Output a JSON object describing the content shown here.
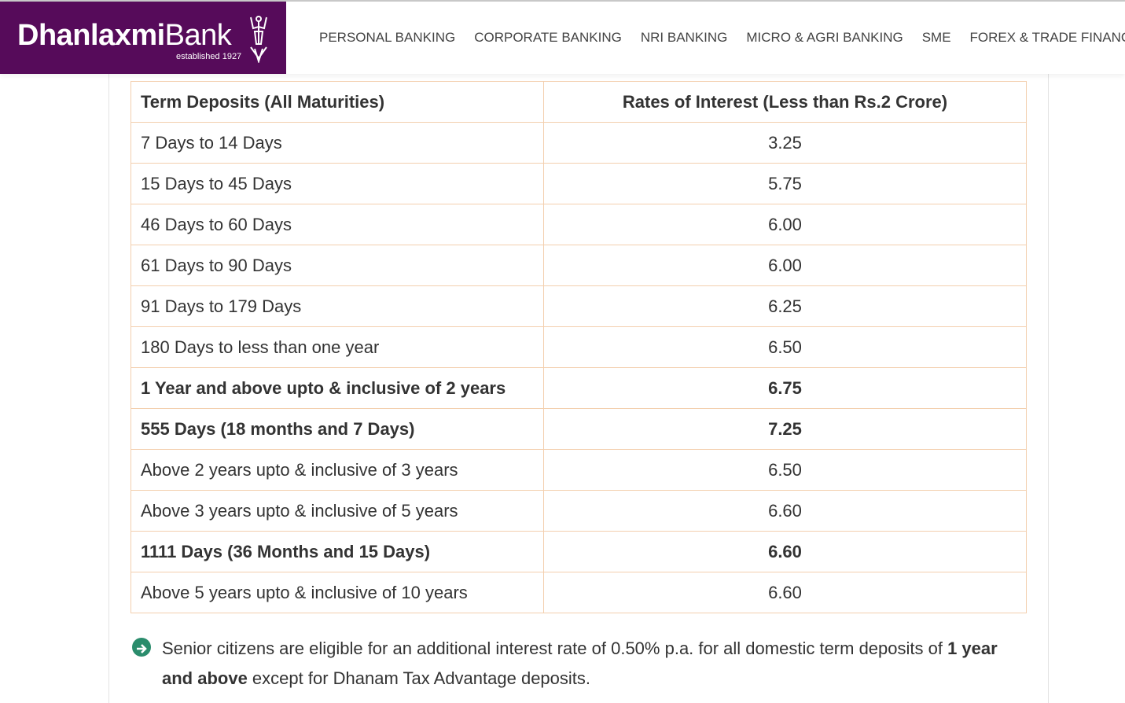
{
  "logo": {
    "brand_bold": "Dhanlaxmi",
    "brand_light": "Bank",
    "tagline": "established 1927"
  },
  "nav": [
    "PERSONAL BANKING",
    "CORPORATE BANKING",
    "NRI BANKING",
    "MICRO & AGRI BANKING",
    "SME",
    "FOREX & TRADE FINANCE"
  ],
  "table": {
    "headers": [
      "Term Deposits (All Maturities)",
      "Rates of Interest (Less than Rs.2 Crore)"
    ],
    "rows": [
      {
        "term": "7 Days to 14 Days",
        "rate": "3.25",
        "bold": false
      },
      {
        "term": "15 Days to 45 Days",
        "rate": "5.75",
        "bold": false
      },
      {
        "term": "46 Days to 60 Days",
        "rate": "6.00",
        "bold": false
      },
      {
        "term": "61 Days to 90 Days",
        "rate": "6.00",
        "bold": false
      },
      {
        "term": "91 Days to 179 Days",
        "rate": "6.25",
        "bold": false
      },
      {
        "term": "180 Days to less than one year",
        "rate": "6.50",
        "bold": false
      },
      {
        "term": "1 Year and above upto & inclusive of 2 years",
        "rate": "6.75",
        "bold": true
      },
      {
        "term": "555 Days (18 months and 7 Days)",
        "rate": "7.25",
        "bold": true
      },
      {
        "term": "Above 2 years upto & inclusive of 3 years",
        "rate": "6.50",
        "bold": false
      },
      {
        "term": "Above 3 years upto & inclusive of 5 years",
        "rate": "6.60",
        "bold": false
      },
      {
        "term": "1111 Days (36 Months and 15 Days)",
        "rate": "6.60",
        "bold": true
      },
      {
        "term": "Above 5 years upto & inclusive of 10 years",
        "rate": "6.60",
        "bold": false
      }
    ]
  },
  "note": {
    "icon": "arrow-circle-right-icon",
    "part1": "Senior citizens are eligible for an additional interest rate of 0.50% p.a. for all domestic term deposits of ",
    "bold": "1 year and above",
    "part2": " except for Dhanam Tax Advantage deposits."
  },
  "colors": {
    "brand": "#560b5a",
    "border": "#f3cfae",
    "icon": "#2a8c6c"
  }
}
